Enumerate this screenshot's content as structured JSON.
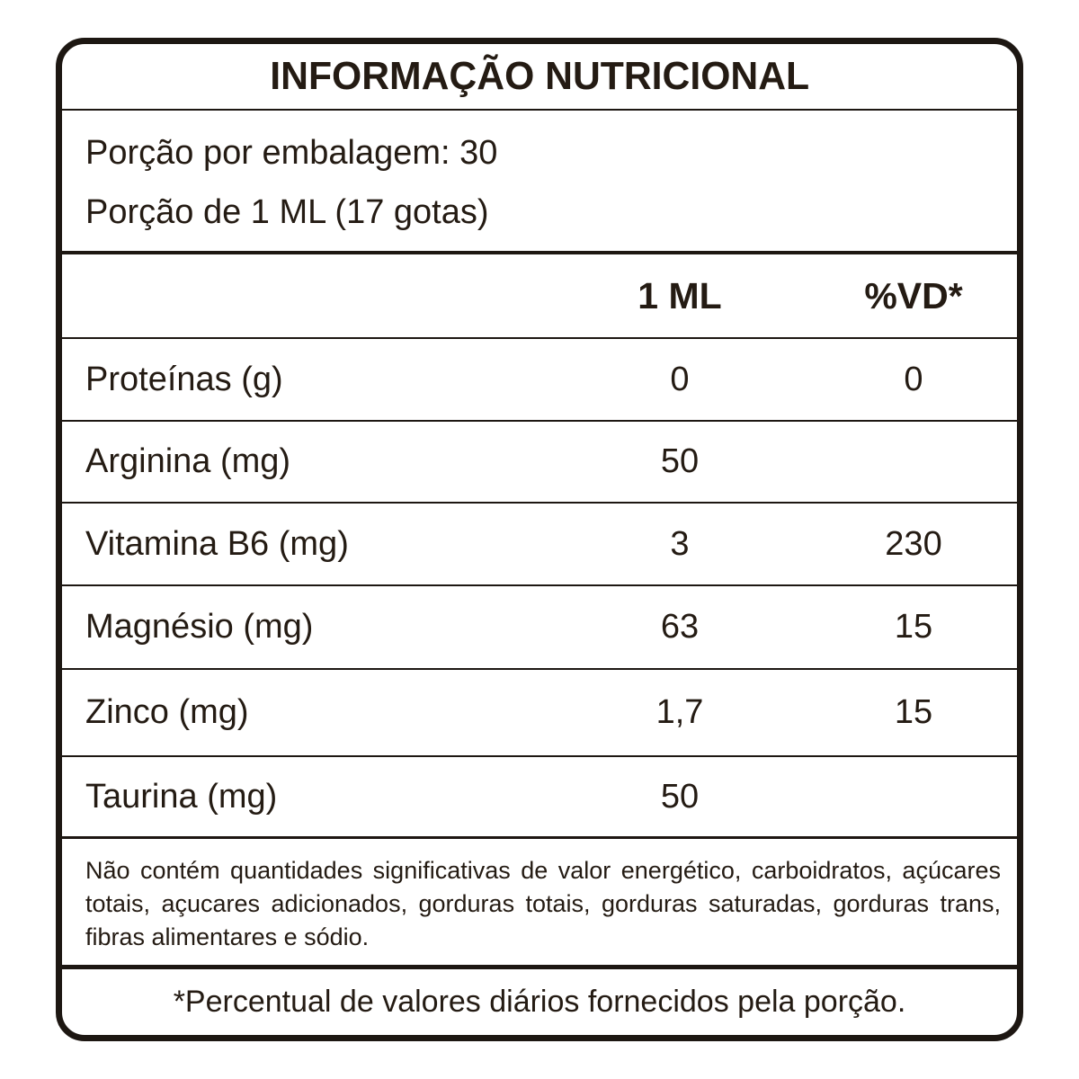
{
  "label": {
    "title": "INFORMAÇÃO NUTRICIONAL",
    "serving_lines": [
      "Porção por embalagem: 30",
      "Porção de 1 ML (17 gotas)"
    ],
    "columns": {
      "amount": "1 ML",
      "dv": "%VD*"
    },
    "rows": [
      {
        "name": "Proteínas (g)",
        "amount": "0",
        "dv": "0"
      },
      {
        "name": "Arginina (mg)",
        "amount": "50",
        "dv": ""
      },
      {
        "name": "Vitamina B6 (mg)",
        "amount": "3",
        "dv": "230"
      },
      {
        "name": "Magnésio (mg)",
        "amount": "63",
        "dv": "15"
      },
      {
        "name": "Zinco (mg)",
        "amount": "1,7",
        "dv": "15"
      },
      {
        "name": "Taurina (mg)",
        "amount": "50",
        "dv": ""
      }
    ],
    "note": "Não contém quantidades significativas de valor energético, carboidratos, açúcares totais, açucares adicionados, gorduras totais, gorduras saturadas, gorduras trans, fibras alimentares e sódio.",
    "footnote": "*Percentual de valores diários fornecidos pela porção.",
    "colors": {
      "ink": "#241b13",
      "border": "#1d1712",
      "background": "#ffffff"
    }
  }
}
